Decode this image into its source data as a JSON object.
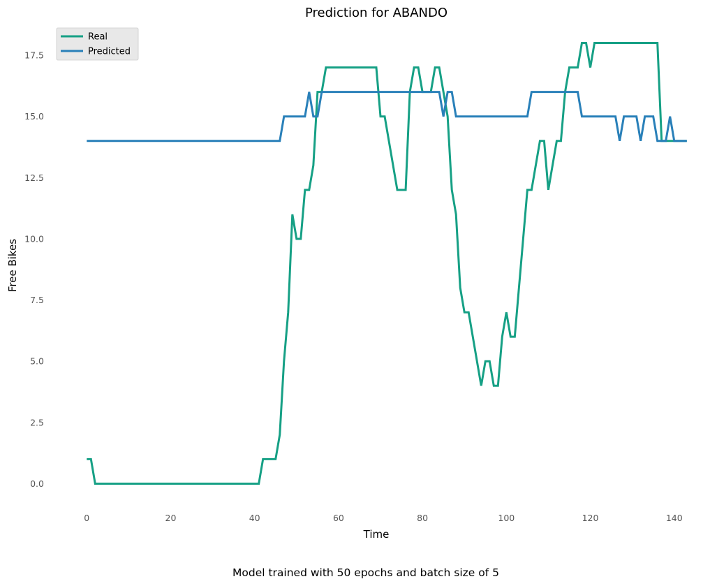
{
  "chart_data": {
    "type": "line",
    "title": "Prediction for ABANDO",
    "xlabel": "Time",
    "ylabel": "Free Bikes",
    "caption": "Model trained with 50 epochs and batch size of 5",
    "xlim": [
      -7.2,
      145.2
    ],
    "ylim": [
      -0.9,
      18.9
    ],
    "xticks": [
      0,
      20,
      40,
      60,
      80,
      100,
      120,
      140
    ],
    "xtick_labels": [
      "0",
      "20",
      "40",
      "60",
      "80",
      "100",
      "120",
      "140"
    ],
    "yticks": [
      0.0,
      2.5,
      5.0,
      7.5,
      10.0,
      12.5,
      15.0,
      17.5
    ],
    "ytick_labels": [
      "0.0",
      "2.5",
      "5.0",
      "7.5",
      "10.0",
      "12.5",
      "15.0",
      "17.5"
    ],
    "grid": false,
    "legend_position": "top-left",
    "series": [
      {
        "name": "Real",
        "color": "#16a085",
        "x": [
          0,
          1,
          2,
          41,
          42,
          43,
          44,
          45,
          46,
          47,
          48,
          49,
          50,
          51,
          52,
          53,
          54,
          55,
          56,
          57,
          58,
          69,
          70,
          71,
          72,
          73,
          74,
          75,
          76,
          77,
          78,
          79,
          80,
          81,
          82,
          83,
          84,
          85,
          86,
          87,
          88,
          89,
          90,
          91,
          92,
          93,
          94,
          95,
          96,
          97,
          98,
          99,
          100,
          101,
          102,
          103,
          104,
          105,
          106,
          107,
          108,
          109,
          110,
          111,
          112,
          113,
          114,
          115,
          116,
          117,
          118,
          119,
          120,
          121,
          136,
          137,
          138,
          139,
          140,
          143
        ],
        "values": [
          1,
          1,
          0,
          0,
          1,
          1,
          1,
          1,
          2,
          5,
          7,
          11,
          10,
          10,
          12,
          12,
          13,
          16,
          16,
          17,
          17,
          17,
          15,
          15,
          14,
          13,
          12,
          12,
          12,
          16,
          17,
          17,
          16,
          16,
          16,
          17,
          17,
          16,
          15,
          12,
          11,
          8,
          7,
          7,
          6,
          5,
          4,
          5,
          5,
          4,
          4,
          6,
          7,
          6,
          6,
          8,
          10,
          12,
          12,
          13,
          14,
          14,
          12,
          13,
          14,
          14,
          16,
          17,
          17,
          17,
          18,
          18,
          17,
          18,
          18,
          14,
          14,
          14,
          14,
          14
        ]
      },
      {
        "name": "Predicted",
        "color": "#2980b9",
        "x": [
          0,
          46,
          47,
          52,
          53,
          54,
          55,
          56,
          84,
          85,
          86,
          87,
          88,
          105,
          106,
          117,
          118,
          126,
          127,
          128,
          131,
          132,
          133,
          135,
          136,
          137,
          138,
          139,
          140,
          143
        ],
        "values": [
          14,
          14,
          15,
          15,
          16,
          15,
          15,
          16,
          16,
          15,
          16,
          16,
          15,
          15,
          16,
          16,
          15,
          15,
          14,
          15,
          15,
          14,
          15,
          15,
          14,
          14,
          14,
          15,
          14,
          14
        ]
      }
    ]
  }
}
